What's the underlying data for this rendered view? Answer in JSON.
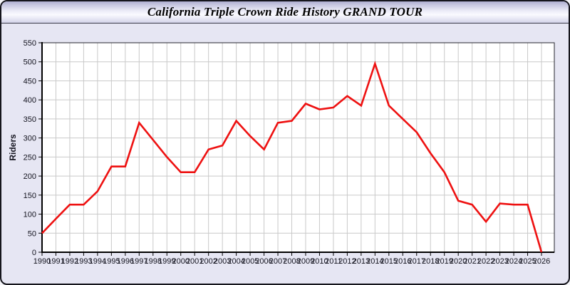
{
  "window": {
    "title": "California Triple Crown Ride History GRAND TOUR"
  },
  "chart_data": {
    "type": "line",
    "title": "California Triple Crown Ride History GRAND TOUR",
    "xlabel": "",
    "ylabel": "Riders",
    "x": [
      1990,
      1991,
      1992,
      1993,
      1994,
      1995,
      1996,
      1997,
      1998,
      1999,
      2000,
      2001,
      2002,
      2003,
      2004,
      2005,
      2006,
      2007,
      2008,
      2009,
      2010,
      2011,
      2012,
      2013,
      2014,
      2015,
      2016,
      2017,
      2018,
      2019,
      2020,
      2021,
      2022,
      2023,
      2024,
      2025,
      2026
    ],
    "series": [
      {
        "name": "Riders",
        "color": "#ee1111",
        "values": [
          50,
          88,
          125,
          125,
          160,
          225,
          225,
          340,
          295,
          250,
          210,
          210,
          270,
          280,
          345,
          305,
          270,
          340,
          345,
          390,
          375,
          380,
          410,
          385,
          495,
          385,
          350,
          315,
          260,
          210,
          135,
          125,
          80,
          128,
          125,
          125,
          0
        ]
      }
    ],
    "ylim": [
      0,
      550
    ],
    "ytick_step": 50,
    "grid": true,
    "legend": false,
    "plot_bg": "#ffffff",
    "grid_color": "#c9c9c9",
    "axis_color": "#000000"
  },
  "colors": {
    "window_background": "#e6e6f3",
    "header_top": "#aeaed2",
    "header_bottom": "#d4d4e9",
    "line": "#ee1111"
  }
}
